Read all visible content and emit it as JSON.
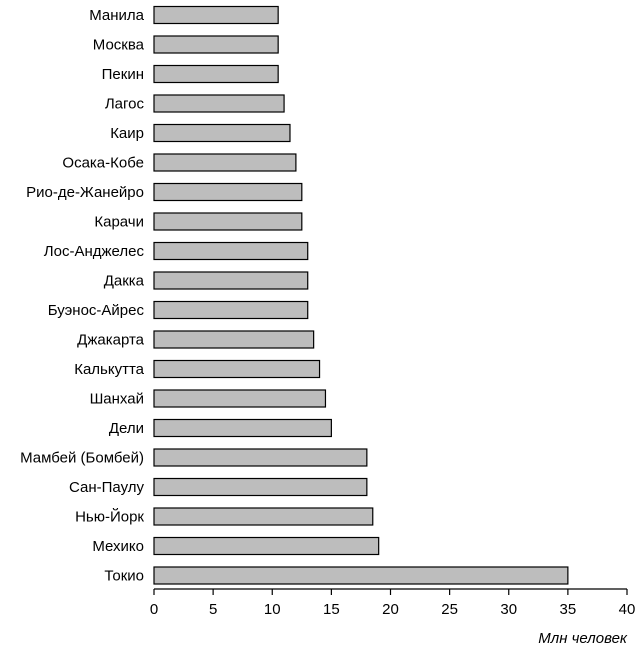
{
  "chart_data": {
    "type": "bar",
    "orientation": "horizontal",
    "categories": [
      "Манила",
      "Москва",
      "Пекин",
      "Лагос",
      "Каир",
      "Осака-Кобе",
      "Рио-де-Жанейро",
      "Карачи",
      "Лос-Анджелес",
      "Дакка",
      "Буэнос-Айрес",
      "Джакарта",
      "Калькутта",
      "Шанхай",
      "Дели",
      "Мамбей (Бомбей)",
      "Сан-Паулу",
      "Нью-Йорк",
      "Мехико",
      "Токио"
    ],
    "values": [
      10.5,
      10.5,
      10.5,
      11,
      11.5,
      12,
      12.5,
      12.5,
      13,
      13,
      13,
      13.5,
      14,
      14.5,
      15,
      18,
      18,
      18.5,
      19,
      35
    ],
    "xlim": [
      0,
      40
    ],
    "xticks": [
      0,
      5,
      10,
      15,
      20,
      25,
      30,
      35,
      40
    ],
    "xlabel": "Млн человек",
    "title": "",
    "grid": false,
    "colors": {
      "bar_fill": "#bdbdbd",
      "bar_stroke": "#000000"
    }
  }
}
